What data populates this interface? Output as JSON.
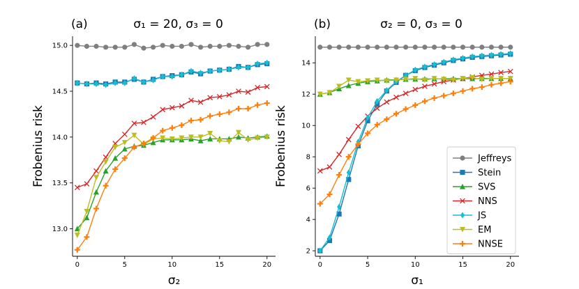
{
  "chart_data": [
    {
      "type": "line",
      "panel": "(a)",
      "title": "σ₁ = 20,  σ₃ = 0",
      "xlabel": "σ₂",
      "ylabel": "Frobenius risk",
      "xlim": [
        -0.5,
        20.9
      ],
      "ylim": [
        12.7,
        15.1
      ],
      "xticks": [
        0,
        5,
        10,
        15,
        20
      ],
      "yticks": [
        13.0,
        13.5,
        14.0,
        14.5,
        15.0
      ],
      "ytick_labels": [
        "13.0",
        "13.5",
        "14.0",
        "14.5",
        "15.0"
      ],
      "x": [
        0,
        1,
        2,
        3,
        4,
        5,
        6,
        7,
        8,
        9,
        10,
        11,
        12,
        13,
        14,
        15,
        16,
        17,
        18,
        19,
        20
      ],
      "series": [
        {
          "name": "Jeffreys",
          "color": "#7f7f7f",
          "marker": "circle",
          "values": [
            15.0,
            14.99,
            14.99,
            14.98,
            14.98,
            14.98,
            15.01,
            14.97,
            14.98,
            15.0,
            14.99,
            14.99,
            15.01,
            14.98,
            14.99,
            14.99,
            15.0,
            14.99,
            14.98,
            15.01,
            15.01
          ]
        },
        {
          "name": "Stein",
          "color": "#1f77b4",
          "marker": "square",
          "values": [
            14.59,
            14.58,
            14.59,
            14.58,
            14.6,
            14.6,
            14.63,
            14.6,
            14.63,
            14.66,
            14.67,
            14.68,
            14.71,
            14.69,
            14.72,
            14.73,
            14.74,
            14.77,
            14.76,
            14.79,
            14.8
          ]
        },
        {
          "name": "SVS",
          "color": "#2ca02c",
          "marker": "triangle-up",
          "values": [
            13.0,
            13.12,
            13.4,
            13.63,
            13.77,
            13.87,
            13.9,
            13.91,
            13.94,
            13.97,
            13.97,
            13.97,
            13.98,
            13.96,
            13.98,
            13.98,
            13.98,
            14.0,
            13.99,
            14.0,
            14.01
          ]
        },
        {
          "name": "NNS",
          "color": "#d62728",
          "marker": "x",
          "values": [
            13.45,
            13.49,
            13.63,
            13.78,
            13.93,
            14.03,
            14.15,
            14.16,
            14.22,
            14.3,
            14.32,
            14.34,
            14.4,
            14.38,
            14.43,
            14.44,
            14.46,
            14.5,
            14.49,
            14.54,
            14.55
          ]
        },
        {
          "name": "JS",
          "color": "#17becf",
          "marker": "diamond",
          "values": [
            14.59,
            14.58,
            14.58,
            14.57,
            14.59,
            14.59,
            14.64,
            14.6,
            14.62,
            14.66,
            14.66,
            14.68,
            14.72,
            14.7,
            14.72,
            14.73,
            14.74,
            14.76,
            14.76,
            14.8,
            14.81
          ]
        },
        {
          "name": "EM",
          "color": "#bcbd22",
          "marker": "triangle-down",
          "values": [
            12.93,
            13.19,
            13.56,
            13.73,
            13.89,
            13.94,
            14.02,
            13.92,
            13.98,
            13.99,
            13.98,
            13.99,
            14.0,
            14.0,
            14.04,
            13.96,
            13.95,
            14.05,
            13.97,
            13.99,
            14.0
          ]
        },
        {
          "name": "NNSE",
          "color": "#ff7f0e",
          "marker": "plus",
          "values": [
            12.77,
            12.91,
            13.22,
            13.47,
            13.65,
            13.77,
            13.89,
            13.93,
            13.99,
            14.07,
            14.1,
            14.13,
            14.18,
            14.19,
            14.23,
            14.25,
            14.27,
            14.31,
            14.31,
            14.35,
            14.37
          ]
        }
      ]
    },
    {
      "type": "line",
      "panel": "(b)",
      "title": "σ₂ = 0,  σ₃ = 0",
      "xlabel": "σ₁",
      "ylabel": "Frobenius risk",
      "xlim": [
        -0.5,
        20.9
      ],
      "ylim": [
        1.65,
        15.7
      ],
      "xticks": [
        0,
        5,
        10,
        15,
        20
      ],
      "yticks": [
        2,
        4,
        6,
        8,
        10,
        12,
        14
      ],
      "ytick_labels": [
        "2",
        "4",
        "6",
        "8",
        "10",
        "12",
        "14"
      ],
      "x": [
        0,
        1,
        2,
        3,
        4,
        5,
        6,
        7,
        8,
        9,
        10,
        11,
        12,
        13,
        14,
        15,
        16,
        17,
        18,
        19,
        20
      ],
      "legend": "lower-right",
      "series": [
        {
          "name": "Jeffreys",
          "color": "#7f7f7f",
          "marker": "circle",
          "values": [
            15.0,
            15.0,
            15.0,
            15.0,
            15.0,
            15.0,
            15.0,
            15.0,
            15.0,
            15.0,
            15.0,
            15.0,
            15.0,
            15.0,
            15.0,
            15.0,
            15.0,
            15.0,
            15.0,
            15.0,
            15.0
          ]
        },
        {
          "name": "Stein",
          "color": "#1f77b4",
          "marker": "square",
          "values": [
            2.0,
            2.65,
            4.35,
            6.55,
            8.7,
            10.3,
            11.35,
            12.2,
            12.75,
            13.2,
            13.5,
            13.7,
            13.85,
            14.0,
            14.15,
            14.25,
            14.35,
            14.4,
            14.45,
            14.5,
            14.55
          ]
        },
        {
          "name": "SVS",
          "color": "#2ca02c",
          "marker": "triangle-up",
          "values": [
            12.0,
            12.1,
            12.35,
            12.55,
            12.7,
            12.8,
            12.85,
            12.9,
            12.92,
            12.95,
            12.96,
            12.97,
            12.98,
            12.98,
            12.99,
            12.99,
            12.99,
            13.0,
            13.0,
            13.0,
            13.0
          ]
        },
        {
          "name": "NNS",
          "color": "#d62728",
          "marker": "x",
          "values": [
            7.1,
            7.35,
            8.15,
            9.1,
            9.95,
            10.6,
            11.1,
            11.5,
            11.8,
            12.05,
            12.3,
            12.5,
            12.65,
            12.8,
            12.9,
            13.0,
            13.1,
            13.2,
            13.28,
            13.38,
            13.45
          ]
        },
        {
          "name": "JS",
          "color": "#17becf",
          "marker": "diamond",
          "values": [
            2.0,
            2.85,
            4.8,
            7.0,
            8.95,
            10.5,
            11.55,
            12.25,
            12.8,
            13.2,
            13.55,
            13.75,
            13.9,
            14.05,
            14.2,
            14.3,
            14.4,
            14.45,
            14.5,
            14.55,
            14.6
          ]
        },
        {
          "name": "EM",
          "color": "#bcbd22",
          "marker": "triangle-down",
          "values": [
            12.0,
            12.1,
            12.5,
            12.9,
            12.8,
            12.85,
            12.9,
            12.85,
            12.9,
            12.95,
            13.0,
            12.9,
            13.0,
            12.95,
            12.9,
            13.0,
            13.05,
            12.95,
            13.0,
            13.0,
            13.0
          ]
        },
        {
          "name": "NNSE",
          "color": "#ff7f0e",
          "marker": "plus",
          "values": [
            5.0,
            5.6,
            6.85,
            8.0,
            8.8,
            9.5,
            10.05,
            10.4,
            10.75,
            11.05,
            11.3,
            11.55,
            11.75,
            11.9,
            12.05,
            12.2,
            12.35,
            12.45,
            12.6,
            12.7,
            12.8
          ]
        }
      ]
    }
  ]
}
